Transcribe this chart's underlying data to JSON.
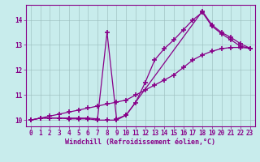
{
  "background_color": "#c8ecec",
  "line_color": "#880088",
  "grid_color": "#99bbbb",
  "xlabel": "Windchill (Refroidissement éolien,°C)",
  "xlabel_color": "#880088",
  "xlim": [
    -0.5,
    23.5
  ],
  "ylim": [
    9.75,
    14.6
  ],
  "yticks": [
    10,
    11,
    12,
    13,
    14
  ],
  "xticks": [
    0,
    1,
    2,
    3,
    4,
    5,
    6,
    7,
    8,
    9,
    10,
    11,
    12,
    13,
    14,
    15,
    16,
    17,
    18,
    19,
    20,
    21,
    22,
    23
  ],
  "series": [
    {
      "x": [
        0,
        1,
        2,
        3,
        4,
        5,
        6,
        7,
        8,
        9,
        10,
        11,
        12,
        13,
        14,
        15,
        16,
        17,
        18,
        19,
        20,
        21,
        22,
        23
      ],
      "y": [
        10.0,
        10.08,
        10.16,
        10.24,
        10.32,
        10.4,
        10.48,
        10.56,
        10.64,
        10.72,
        10.8,
        11.0,
        11.2,
        11.4,
        11.6,
        11.8,
        12.1,
        12.4,
        12.6,
        12.75,
        12.85,
        12.9,
        12.9,
        12.87
      ]
    },
    {
      "x": [
        0,
        1,
        2,
        3,
        4,
        5,
        6,
        7,
        8,
        9,
        10,
        11,
        12,
        13,
        14,
        15,
        16,
        17,
        18,
        19,
        20,
        21,
        22,
        23
      ],
      "y": [
        10.0,
        10.08,
        10.08,
        10.08,
        10.08,
        10.08,
        10.08,
        10.05,
        13.5,
        10.05,
        10.2,
        10.7,
        11.5,
        12.4,
        12.85,
        13.2,
        13.6,
        14.0,
        14.3,
        13.75,
        13.45,
        13.2,
        12.95,
        12.87
      ]
    },
    {
      "x": [
        0,
        1,
        2,
        3,
        4,
        5,
        6,
        7,
        8,
        9,
        10,
        18,
        19,
        20,
        21,
        22,
        23
      ],
      "y": [
        10.0,
        10.08,
        10.08,
        10.08,
        10.05,
        10.05,
        10.05,
        10.0,
        10.0,
        10.0,
        10.2,
        14.35,
        13.8,
        13.5,
        13.3,
        13.05,
        12.87
      ]
    }
  ],
  "marker": "+",
  "markersize": 4,
  "markeredgewidth": 1.2,
  "linewidth": 0.9,
  "tick_fontsize": 5.5,
  "label_fontsize": 6.0,
  "spine_color": "#880088",
  "tick_color": "#880088"
}
